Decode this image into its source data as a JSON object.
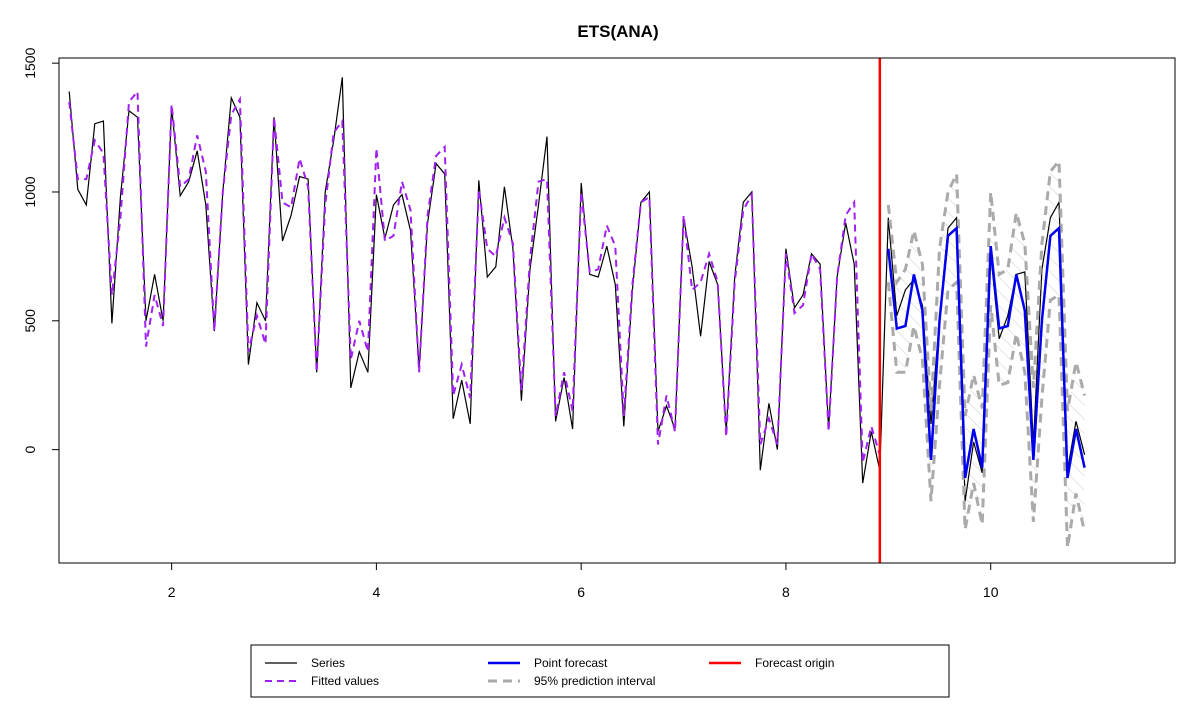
{
  "chart_data": {
    "type": "line",
    "title": "ETS(ANA)",
    "xlabel": "",
    "ylabel": "",
    "xlim": [
      0.9,
      11.8
    ],
    "ylim": [
      -440,
      1520
    ],
    "x_ticks": [
      2,
      4,
      6,
      8,
      10
    ],
    "y_ticks": [
      0,
      500,
      1000,
      1500
    ],
    "y_tick_labels": [
      "0",
      "500",
      "1000",
      "1500"
    ],
    "grid": false,
    "legend_position": "bottom",
    "forecast_origin": 8.917,
    "series_start": 1,
    "step": 0.0833333,
    "colors": {
      "series": "#000000",
      "fitted": "#a020f0",
      "forecast": "#0000ee",
      "interval": "#aaaaaa",
      "origin": "#ff0000"
    },
    "series": [
      {
        "name": "Series",
        "values": [
          1390,
          1010,
          950,
          1265,
          1275,
          490,
          980,
          1315,
          1290,
          500,
          680,
          500,
          1330,
          985,
          1040,
          1160,
          950,
          460,
          1000,
          1365,
          1290,
          330,
          570,
          500,
          1290,
          810,
          910,
          1060,
          1050,
          300,
          1000,
          1200,
          1445,
          240,
          380,
          300,
          990,
          820,
          950,
          990,
          850,
          310,
          880,
          1110,
          1070,
          120,
          270,
          100,
          1045,
          670,
          710,
          1020,
          780,
          190,
          700,
          950,
          1215,
          110,
          280,
          80,
          1035,
          680,
          670,
          790,
          640,
          90,
          620,
          960,
          1000,
          70,
          170,
          80,
          900,
          710,
          440,
          730,
          640,
          70,
          670,
          960,
          1000,
          -80,
          180,
          0,
          780,
          550,
          600,
          760,
          720,
          80,
          670,
          880,
          720,
          -130,
          70,
          -80
        ]
      },
      {
        "name": "Fitted values",
        "values": [
          1350,
          1050,
          1050,
          1200,
          1150,
          600,
          900,
          1350,
          1390,
          400,
          600,
          480,
          1340,
          1020,
          1050,
          1220,
          1080,
          460,
          1000,
          1300,
          1360,
          380,
          520,
          410,
          1290,
          960,
          940,
          1130,
          1020,
          300,
          950,
          1230,
          1275,
          350,
          500,
          380,
          1170,
          810,
          830,
          1040,
          930,
          300,
          910,
          1140,
          1175,
          210,
          330,
          200,
          1010,
          780,
          750,
          900,
          800,
          230,
          740,
          1040,
          1050,
          130,
          300,
          150,
          1000,
          690,
          700,
          870,
          790,
          130,
          640,
          960,
          980,
          20,
          210,
          70,
          910,
          620,
          650,
          760,
          650,
          50,
          650,
          930,
          990,
          20,
          120,
          20,
          760,
          530,
          560,
          760,
          700,
          70,
          670,
          910,
          960,
          -50,
          90,
          -20
        ]
      }
    ],
    "forecast": {
      "name": "Point forecast",
      "x": [
        9.0,
        9.083,
        9.167,
        9.25,
        9.333,
        9.417,
        9.5,
        9.583,
        9.667,
        9.75,
        9.833,
        9.917,
        10.0,
        10.083,
        10.167,
        10.25,
        10.333,
        10.417,
        10.5,
        10.583,
        10.667,
        10.75,
        10.833,
        10.917
      ],
      "values": [
        780,
        470,
        480,
        680,
        540,
        -40,
        500,
        830,
        860,
        -110,
        80,
        -70,
        790,
        470,
        480,
        680,
        540,
        -40,
        500,
        830,
        860,
        -110,
        80,
        -70
      ]
    },
    "holdout": {
      "name": "Series (holdout)",
      "x": [
        8.917,
        9.0,
        9.083,
        9.167,
        9.25,
        9.333,
        9.417,
        9.5,
        9.583,
        9.667,
        9.75,
        9.833,
        9.917,
        10.0,
        10.083,
        10.167,
        10.25,
        10.333,
        10.417,
        10.5,
        10.583,
        10.667,
        10.75,
        10.833,
        10.917
      ],
      "values": [
        -80,
        900,
        520,
        620,
        660,
        560,
        100,
        510,
        860,
        900,
        -200,
        30,
        -90,
        760,
        430,
        520,
        680,
        690,
        20,
        700,
        900,
        960,
        -80,
        110,
        -20
      ]
    },
    "interval": {
      "name": "95% prediction interval",
      "x": [
        9.0,
        9.083,
        9.167,
        9.25,
        9.333,
        9.417,
        9.5,
        9.583,
        9.667,
        9.75,
        9.833,
        9.917,
        10.0,
        10.083,
        10.167,
        10.25,
        10.333,
        10.417,
        10.5,
        10.583,
        10.667,
        10.75,
        10.833,
        10.917
      ],
      "upper": [
        950,
        650,
        700,
        850,
        720,
        150,
        780,
        1000,
        1070,
        130,
        290,
        160,
        1000,
        680,
        700,
        920,
        800,
        240,
        800,
        1080,
        1120,
        150,
        340,
        210
      ],
      "lower": [
        650,
        300,
        300,
        480,
        350,
        -200,
        250,
        620,
        650,
        -310,
        -130,
        -290,
        560,
        250,
        260,
        450,
        300,
        -280,
        200,
        580,
        600,
        -380,
        -170,
        -320
      ]
    },
    "legend": [
      {
        "label": "Series",
        "style": "series"
      },
      {
        "label": "Point forecast",
        "style": "forecast"
      },
      {
        "label": "Forecast origin",
        "style": "origin"
      },
      {
        "label": "Fitted values",
        "style": "fitted"
      },
      {
        "label": "95% prediction interval",
        "style": "interval"
      }
    ]
  }
}
